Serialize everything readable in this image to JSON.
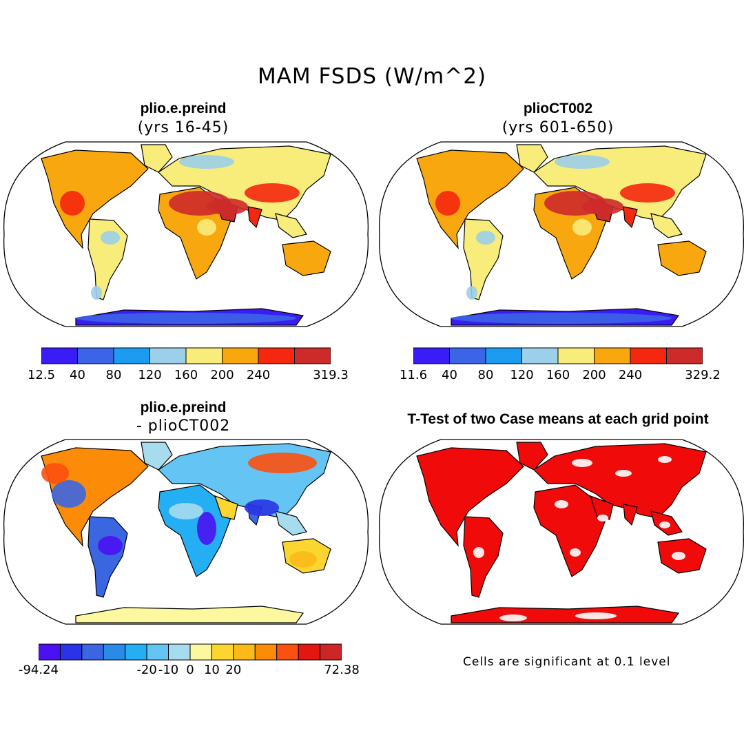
{
  "main_title": "MAM FSDS (W/m^2)",
  "panels": {
    "top_left": {
      "title": "plio.e.preind",
      "subtitle": "(yrs 16-45)"
    },
    "top_right": {
      "title": "plioCT002",
      "subtitle": "(yrs 601-650)"
    },
    "bottom_left": {
      "title": "plio.e.preind",
      "subtitle": "- plioCT002"
    },
    "bottom_right": {
      "title": "T-Test of two Case means at each grid point"
    }
  },
  "colorbars": {
    "top_left": {
      "colors": [
        "#3a1cf6",
        "#3c64e6",
        "#1c9cf0",
        "#9bcfea",
        "#f8ec7a",
        "#f9a70f",
        "#f4280e",
        "#cd2a2a"
      ],
      "labels": [
        "12.5",
        "40",
        "80",
        "120",
        "160",
        "200",
        "240",
        "319.3"
      ]
    },
    "top_right": {
      "colors": [
        "#3a1cf6",
        "#3c64e6",
        "#1c9cf0",
        "#9bcfea",
        "#f8ec7a",
        "#f9a70f",
        "#f4280e",
        "#cd2a2a"
      ],
      "labels": [
        "11.6",
        "40",
        "80",
        "120",
        "160",
        "200",
        "240",
        "329.2"
      ]
    },
    "bottom_left": {
      "colors": [
        "#4a12f2",
        "#2a34e6",
        "#3a66e2",
        "#2a8ae8",
        "#24aef4",
        "#64c4f4",
        "#a6dcee",
        "#fcf8a0",
        "#fcd630",
        "#fcba18",
        "#fc8c08",
        "#fc5010",
        "#e41612",
        "#cc2626"
      ],
      "labels": [
        "-94.24",
        "-20",
        "-10",
        "0",
        "10",
        "20",
        "72.38"
      ]
    }
  },
  "note": "Cells are significant at 0.1 level",
  "colors": {
    "significance": "#f00a0a",
    "outline": "#000000"
  }
}
